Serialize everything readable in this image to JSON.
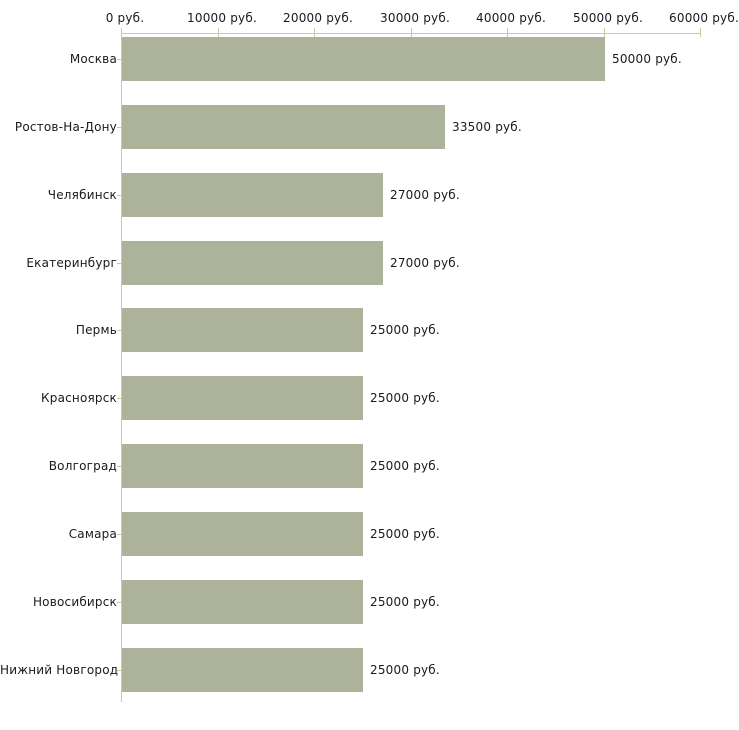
{
  "chart_data": {
    "type": "bar",
    "orientation": "horizontal",
    "title": "",
    "xlabel": "",
    "ylabel": "",
    "unit": "руб.",
    "xlim": [
      0,
      60000
    ],
    "grid": false,
    "legend": false,
    "categories": [
      "Москва",
      "Ростов-На-Дону",
      "Челябинск",
      "Екатеринбург",
      "Пермь",
      "Красноярск",
      "Волгоград",
      "Самара",
      "Новосибирск",
      "Нижний Новгород"
    ],
    "values": [
      50000,
      33500,
      27000,
      27000,
      25000,
      25000,
      25000,
      25000,
      25000,
      25000
    ],
    "value_labels": [
      "50000 руб.",
      "33500 руб.",
      "27000 руб.",
      "27000 руб.",
      "25000 руб.",
      "25000 руб.",
      "25000 руб.",
      "25000 руб.",
      "25000 руб.",
      "25000 руб."
    ],
    "x_ticks": [
      0,
      10000,
      20000,
      30000,
      40000,
      50000,
      60000
    ],
    "x_tick_labels": [
      "0 руб.",
      "10000 руб.",
      "20000 руб.",
      "30000 руб.",
      "40000 руб.",
      "50000 руб.",
      "60000 руб."
    ],
    "colors": {
      "bar": "#adb39a",
      "axis_line": "#c6c6c6",
      "tick_mark": "#cbcb9e",
      "text": "#1a1a1a",
      "background": "#ffffff"
    }
  }
}
